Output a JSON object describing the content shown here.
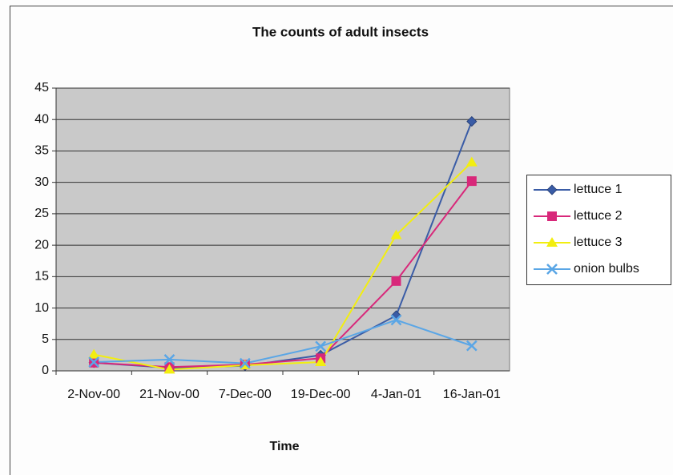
{
  "chart_data": {
    "type": "line",
    "title": "The counts of adult insects",
    "x_label": "Time",
    "categories": [
      "2-Nov-00",
      "21-Nov-00",
      "7-Dec-00",
      "19-Dec-00",
      "4-Jan-01",
      "16-Jan-01"
    ],
    "series": [
      {
        "name": "lettuce 1",
        "color": "#3a5ca6",
        "marker": "diamond",
        "values": [
          1.3,
          0.5,
          0.8,
          2.5,
          8.8,
          39.7
        ]
      },
      {
        "name": "lettuce 2",
        "color": "#d8287a",
        "marker": "square",
        "values": [
          1.3,
          0.6,
          1.0,
          2.0,
          14.3,
          30.2
        ]
      },
      {
        "name": "lettuce 3",
        "color": "#f2ee10",
        "marker": "triangle",
        "values": [
          2.6,
          0.2,
          0.9,
          1.4,
          21.6,
          33.2
        ]
      },
      {
        "name": "onion bulbs",
        "color": "#5aa6e6",
        "marker": "x",
        "values": [
          1.4,
          1.8,
          1.2,
          3.9,
          8.1,
          4.0
        ]
      }
    ],
    "ylim": [
      0,
      45
    ],
    "yticks": [
      0,
      5,
      10,
      15,
      20,
      25,
      30,
      35,
      40,
      45
    ],
    "grid": true,
    "legend": "right"
  }
}
